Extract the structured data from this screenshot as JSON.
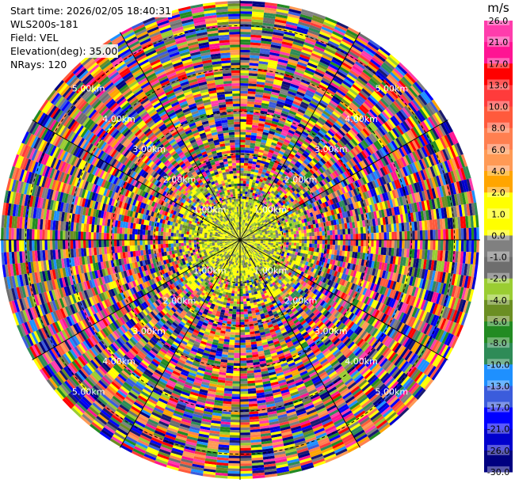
{
  "header": {
    "start_time": "Start time: 2026/02/05 18:40:31",
    "instrument": "WLS200s-181",
    "field": "Field: VEL",
    "elevation": "Elevation(deg): 35.00",
    "nrays": "NRays: 120"
  },
  "colorbar": {
    "unit": "m/s",
    "ticks": [
      "26.0",
      "21.0",
      "17.0",
      "13.0",
      "10.0",
      "8.0",
      "6.0",
      "4.0",
      "2.0",
      "1.0",
      "0.0",
      "-1.0",
      "-2.0",
      "-4.0",
      "-6.0",
      "-8.0",
      "-10.0",
      "-13.0",
      "-17.0",
      "-21.0",
      "-26.0",
      "-30.0"
    ],
    "colors": [
      "#ff3dac",
      "#ff1493",
      "#ff0000",
      "#ff3b3b",
      "#ff5a3c",
      "#ff7f50",
      "#ff9a55",
      "#ffa500",
      "#ffff00",
      "#ffff00",
      "#808080",
      "#6e6e6e",
      "#9acd32",
      "#6b8e23",
      "#228b22",
      "#2e8b57",
      "#1e90ff",
      "#3b5cdc",
      "#0000ff",
      "#0000cd",
      "#000080",
      "#191970"
    ]
  },
  "chart_data": {
    "type": "heatmap",
    "projection": "polar PPI",
    "field": "VEL",
    "elevation_deg": 35.0,
    "nrays": 120,
    "range_rings_km": [
      "1.00km",
      "2.00km",
      "3.00km",
      "4.00km",
      "5.00km"
    ],
    "ring_km": [
      1,
      2,
      3,
      4,
      5
    ],
    "max_range_km": 5.6,
    "value_range": [
      -30,
      30
    ],
    "unit": "m/s",
    "spoke_angles_deg": [
      0,
      30,
      60,
      90,
      120,
      150,
      180,
      210,
      240,
      270,
      300,
      330
    ],
    "pattern_notes": "near-range (<1.2 km) dominated by yellow/olive/grey (0 to +2 m/s); outer ranges noisy full-spectrum"
  }
}
